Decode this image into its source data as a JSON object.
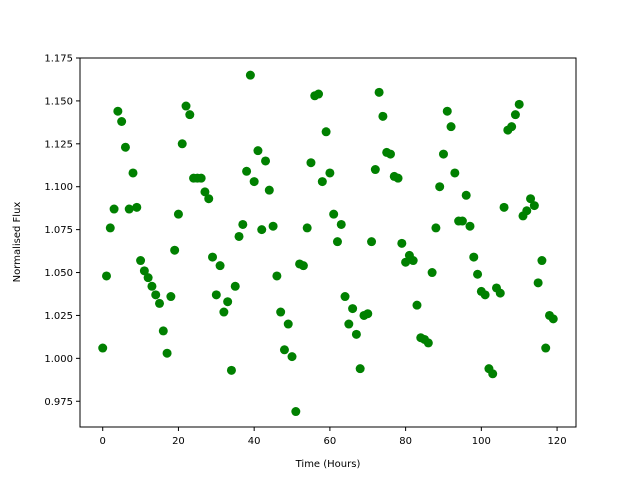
{
  "chart_data": {
    "type": "scatter",
    "title": "",
    "xlabel": "Time (Hours)",
    "ylabel": "Normalised Flux",
    "xlim": [
      -6,
      125
    ],
    "ylim": [
      0.96,
      1.175
    ],
    "xticks": [
      0,
      20,
      40,
      60,
      80,
      100,
      120
    ],
    "yticks": [
      0.975,
      1.0,
      1.025,
      1.05,
      1.075,
      1.1,
      1.125,
      1.15,
      1.175
    ],
    "xtick_labels": [
      "0",
      "20",
      "40",
      "60",
      "80",
      "100",
      "120"
    ],
    "ytick_labels": [
      "0.975",
      "1.000",
      "1.025",
      "1.050",
      "1.075",
      "1.100",
      "1.125",
      "1.150",
      "1.175"
    ],
    "grid": false,
    "legend": "none",
    "marker_color": "#008000",
    "points": [
      [
        0,
        1.006
      ],
      [
        1,
        1.048
      ],
      [
        2,
        1.076
      ],
      [
        3,
        1.087
      ],
      [
        4,
        1.144
      ],
      [
        5,
        1.138
      ],
      [
        6,
        1.123
      ],
      [
        7,
        1.087
      ],
      [
        8,
        1.108
      ],
      [
        9,
        1.088
      ],
      [
        10,
        1.057
      ],
      [
        11,
        1.051
      ],
      [
        12,
        1.047
      ],
      [
        13,
        1.042
      ],
      [
        14,
        1.037
      ],
      [
        15,
        1.032
      ],
      [
        16,
        1.016
      ],
      [
        17,
        1.003
      ],
      [
        18,
        1.036
      ],
      [
        19,
        1.063
      ],
      [
        20,
        1.084
      ],
      [
        21,
        1.125
      ],
      [
        22,
        1.147
      ],
      [
        23,
        1.142
      ],
      [
        24,
        1.105
      ],
      [
        25,
        1.105
      ],
      [
        26,
        1.105
      ],
      [
        27,
        1.097
      ],
      [
        28,
        1.093
      ],
      [
        29,
        1.059
      ],
      [
        30,
        1.037
      ],
      [
        31,
        1.054
      ],
      [
        32,
        1.027
      ],
      [
        33,
        1.033
      ],
      [
        34,
        0.993
      ],
      [
        35,
        1.042
      ],
      [
        36,
        1.071
      ],
      [
        37,
        1.078
      ],
      [
        38,
        1.109
      ],
      [
        39,
        1.165
      ],
      [
        40,
        1.103
      ],
      [
        41,
        1.121
      ],
      [
        42,
        1.075
      ],
      [
        43,
        1.115
      ],
      [
        44,
        1.098
      ],
      [
        45,
        1.077
      ],
      [
        46,
        1.048
      ],
      [
        47,
        1.027
      ],
      [
        48,
        1.005
      ],
      [
        49,
        1.02
      ],
      [
        50,
        1.001
      ],
      [
        51,
        0.969
      ],
      [
        52,
        1.055
      ],
      [
        53,
        1.054
      ],
      [
        54,
        1.076
      ],
      [
        55,
        1.114
      ],
      [
        56,
        1.153
      ],
      [
        57,
        1.154
      ],
      [
        58,
        1.103
      ],
      [
        59,
        1.132
      ],
      [
        60,
        1.108
      ],
      [
        61,
        1.084
      ],
      [
        62,
        1.068
      ],
      [
        63,
        1.078
      ],
      [
        64,
        1.036
      ],
      [
        65,
        1.02
      ],
      [
        66,
        1.029
      ],
      [
        67,
        1.014
      ],
      [
        68,
        0.994
      ],
      [
        69,
        1.025
      ],
      [
        70,
        1.026
      ],
      [
        71,
        1.068
      ],
      [
        72,
        1.11
      ],
      [
        73,
        1.155
      ],
      [
        74,
        1.141
      ],
      [
        75,
        1.12
      ],
      [
        76,
        1.119
      ],
      [
        77,
        1.106
      ],
      [
        78,
        1.105
      ],
      [
        79,
        1.067
      ],
      [
        80,
        1.056
      ],
      [
        81,
        1.06
      ],
      [
        82,
        1.057
      ],
      [
        83,
        1.031
      ],
      [
        84,
        1.012
      ],
      [
        85,
        1.011
      ],
      [
        86,
        1.009
      ],
      [
        87,
        1.05
      ],
      [
        88,
        1.076
      ],
      [
        89,
        1.1
      ],
      [
        90,
        1.119
      ],
      [
        91,
        1.144
      ],
      [
        92,
        1.135
      ],
      [
        93,
        1.108
      ],
      [
        94,
        1.08
      ],
      [
        95,
        1.08
      ],
      [
        96,
        1.095
      ],
      [
        97,
        1.077
      ],
      [
        98,
        1.059
      ],
      [
        99,
        1.049
      ],
      [
        100,
        1.039
      ],
      [
        101,
        1.037
      ],
      [
        102,
        0.994
      ],
      [
        103,
        0.991
      ],
      [
        104,
        1.041
      ],
      [
        105,
        1.038
      ],
      [
        106,
        1.088
      ],
      [
        107,
        1.133
      ],
      [
        108,
        1.135
      ],
      [
        109,
        1.142
      ],
      [
        110,
        1.148
      ],
      [
        111,
        1.083
      ],
      [
        112,
        1.086
      ],
      [
        113,
        1.093
      ],
      [
        114,
        1.089
      ],
      [
        115,
        1.044
      ],
      [
        116,
        1.057
      ],
      [
        117,
        1.006
      ],
      [
        118,
        1.025
      ],
      [
        119,
        1.023
      ]
    ]
  }
}
